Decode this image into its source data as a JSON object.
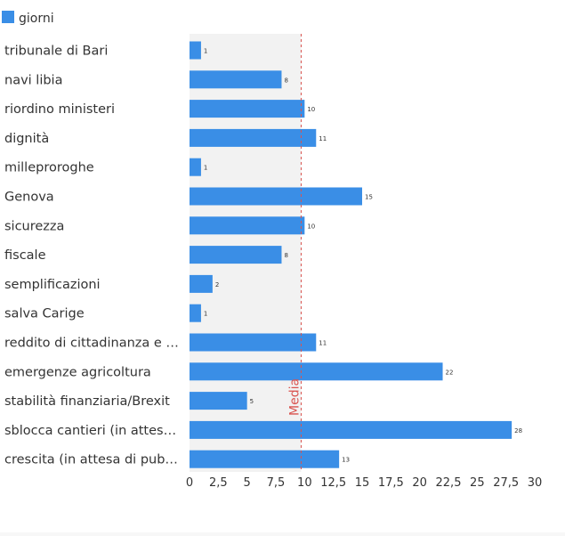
{
  "chart_data": {
    "type": "bar",
    "orientation": "horizontal",
    "legend": {
      "label": "giorni",
      "color": "#3a8ee6",
      "placement": "top-left"
    },
    "categories": [
      "tribunale di Bari",
      "navi libia",
      "riordino ministeri",
      "dignità",
      "milleproroghe",
      "Genova",
      "sicurezza",
      "fiscale",
      "semplificazioni",
      "salva Carige",
      "reddito di cittadinanza e …",
      "emergenze agricoltura",
      "stabilità finanziaria/Brexit",
      "sblocca cantieri (in attes…",
      "crescita (in attesa di pub…"
    ],
    "values": [
      1,
      8,
      10,
      11,
      1,
      15,
      10,
      8,
      2,
      1,
      11,
      22,
      5,
      28,
      13
    ],
    "data_labels": [
      "1",
      "8",
      "10",
      "11",
      "1",
      "15",
      "10",
      "8",
      "2",
      "1",
      "11",
      "22",
      "5",
      "28",
      "13"
    ],
    "xlim": [
      0,
      30
    ],
    "x_ticks": [
      "0",
      "2,5",
      "5",
      "7,5",
      "10",
      "12,5",
      "15",
      "17,5",
      "20",
      "22,5",
      "25",
      "27,5",
      "30"
    ],
    "average": {
      "label": "Media",
      "value": 9.7,
      "color": "#d9534f"
    },
    "shaded_band": [
      0,
      9.7
    ],
    "colors": {
      "bar": "#3a8ee6",
      "band": "#f2f2f2",
      "axis_text": "#333333"
    }
  }
}
